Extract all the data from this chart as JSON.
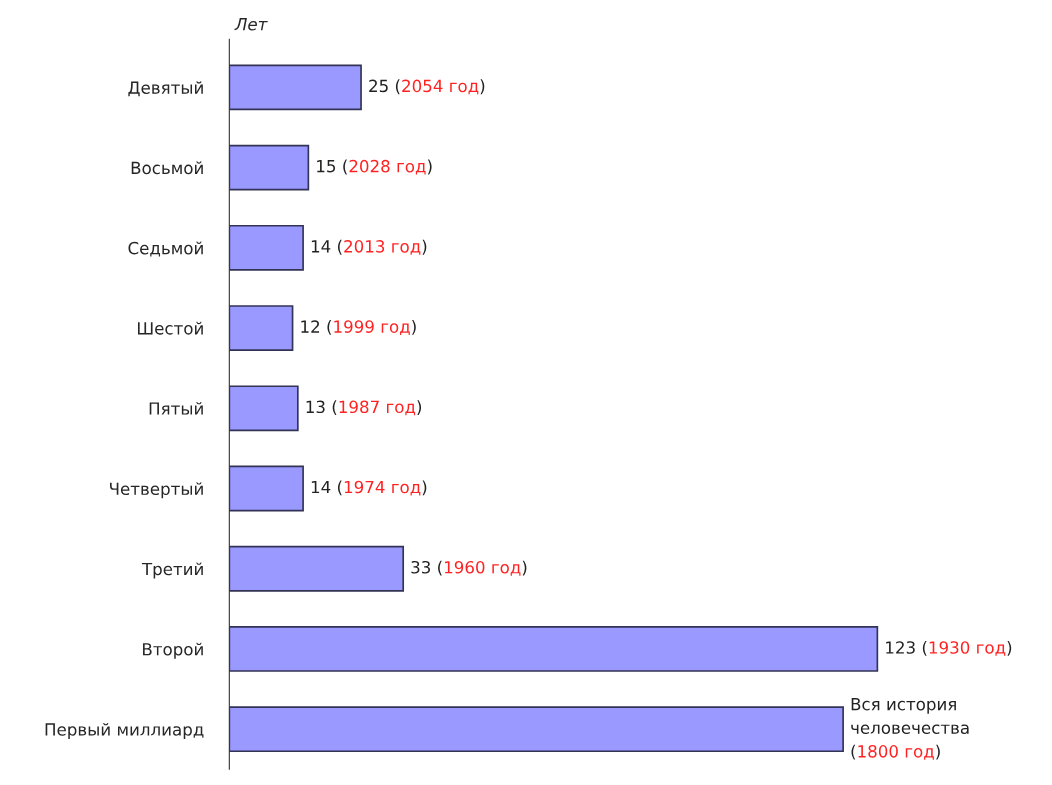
{
  "chart_data": {
    "type": "bar",
    "orientation": "horizontal",
    "xlabel": "Лет",
    "categories": [
      "Девятый",
      "Восьмой",
      "Седьмой",
      "Шестой",
      "Пятый",
      "Четвертый",
      "Третий",
      "Второй",
      "Первый миллиард"
    ],
    "values": [
      25,
      15,
      14,
      12,
      13,
      14,
      33,
      123,
      116.5
    ],
    "color": "#9999ff",
    "value_labels": [
      "25 (2054 год)",
      "15 (2028 год)",
      "14 (2013 год)",
      "12 (1999 год)",
      "13 (1987 год)",
      "14 (1974 год)",
      "33 (1960 год)",
      "123 (1930 год)",
      null
    ],
    "annotations": [
      {
        "text": "Вся история\nчеловечества\n(1800 год)",
        "x": 116.5,
        "y": "Первый миллиард"
      }
    ],
    "grid": false
  }
}
